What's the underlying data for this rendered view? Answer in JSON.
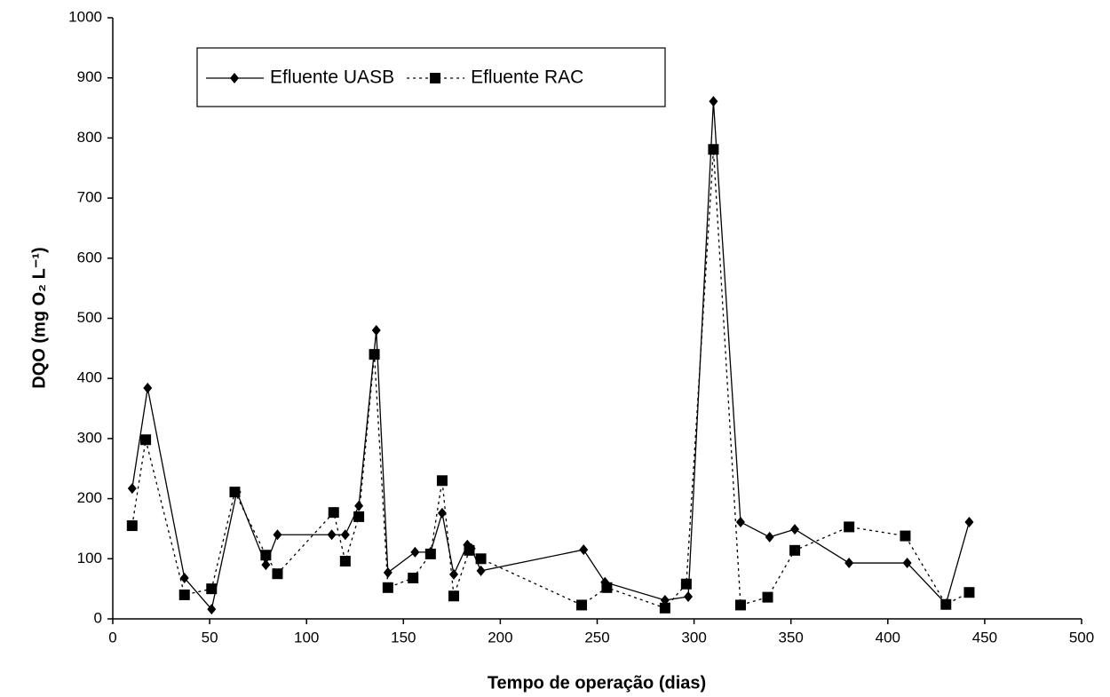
{
  "chart_data": {
    "type": "line",
    "xlabel": "Tempo de operação (dias)",
    "ylabel": "DQO (mg O₂ L⁻¹)",
    "xlim": [
      0,
      500
    ],
    "xticks": [
      0,
      50,
      100,
      150,
      200,
      250,
      300,
      350,
      400,
      450,
      500
    ],
    "ylim": [
      0,
      1000
    ],
    "yticks": [
      0,
      100,
      200,
      300,
      400,
      500,
      600,
      700,
      800,
      900,
      1000
    ],
    "grid": false,
    "legend": "upper left",
    "series": [
      {
        "name": "Efluente UASB",
        "color": "#000000",
        "marker": "diamond",
        "dash": "solid",
        "x": [
          10,
          18,
          37,
          51,
          64,
          79,
          85,
          113,
          120,
          127,
          136,
          142,
          156,
          164,
          170,
          176,
          183,
          185,
          190,
          243,
          254,
          285,
          297,
          310,
          324,
          339,
          352,
          380,
          410,
          430,
          442
        ],
        "values": [
          217,
          384,
          68,
          16,
          211,
          90,
          140,
          140,
          140,
          188,
          480,
          77,
          111,
          111,
          176,
          74,
          123,
          117,
          80,
          115,
          61,
          31,
          37,
          861,
          161,
          136,
          149,
          93,
          93,
          25,
          161
        ]
      },
      {
        "name": "Efluente RAC",
        "color": "#000000",
        "marker": "square",
        "dash": "dotted",
        "x": [
          10,
          17,
          37,
          51,
          63,
          79,
          85,
          114,
          120,
          127,
          135,
          142,
          155,
          164,
          170,
          176,
          184,
          190,
          242,
          255,
          285,
          296,
          310,
          324,
          338,
          352,
          380,
          409,
          430,
          442
        ],
        "values": [
          155,
          298,
          40,
          50,
          211,
          106,
          75,
          177,
          96,
          170,
          440,
          52,
          68,
          108,
          230,
          38,
          114,
          100,
          23,
          52,
          18,
          58,
          781,
          23,
          36,
          114,
          153,
          138,
          24,
          44
        ]
      }
    ]
  }
}
